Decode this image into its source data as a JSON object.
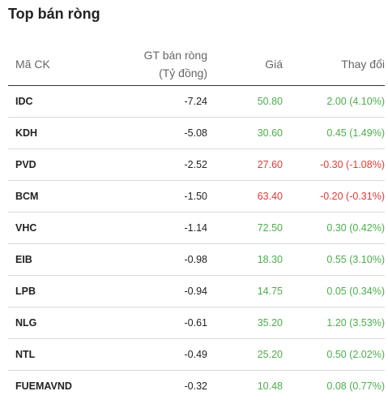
{
  "title": "Top bán ròng",
  "columns": {
    "symbol": "Mã CK",
    "net_value_line1": "GT bán ròng",
    "net_value_line2": "(Tỷ đồng)",
    "price": "Giá",
    "change": "Thay đổi"
  },
  "colors": {
    "up": "#4cae4c",
    "down": "#e53935"
  },
  "rows": [
    {
      "symbol": "IDC",
      "net": "-7.24",
      "price": "50.80",
      "change": "2.00 (4.10%)",
      "direction": "up"
    },
    {
      "symbol": "KDH",
      "net": "-5.08",
      "price": "30.60",
      "change": "0.45 (1.49%)",
      "direction": "up"
    },
    {
      "symbol": "PVD",
      "net": "-2.52",
      "price": "27.60",
      "change": "-0.30 (-1.08%)",
      "direction": "down"
    },
    {
      "symbol": "BCM",
      "net": "-1.50",
      "price": "63.40",
      "change": "-0.20 (-0.31%)",
      "direction": "down"
    },
    {
      "symbol": "VHC",
      "net": "-1.14",
      "price": "72.50",
      "change": "0.30 (0.42%)",
      "direction": "up"
    },
    {
      "symbol": "EIB",
      "net": "-0.98",
      "price": "18.30",
      "change": "0.55 (3.10%)",
      "direction": "up"
    },
    {
      "symbol": "LPB",
      "net": "-0.94",
      "price": "14.75",
      "change": "0.05 (0.34%)",
      "direction": "up"
    },
    {
      "symbol": "NLG",
      "net": "-0.61",
      "price": "35.20",
      "change": "1.20 (3.53%)",
      "direction": "up"
    },
    {
      "symbol": "NTL",
      "net": "-0.49",
      "price": "25.20",
      "change": "0.50 (2.02%)",
      "direction": "up"
    },
    {
      "symbol": "FUEMAVND",
      "net": "-0.32",
      "price": "10.48",
      "change": "0.08 (0.77%)",
      "direction": "up"
    }
  ]
}
